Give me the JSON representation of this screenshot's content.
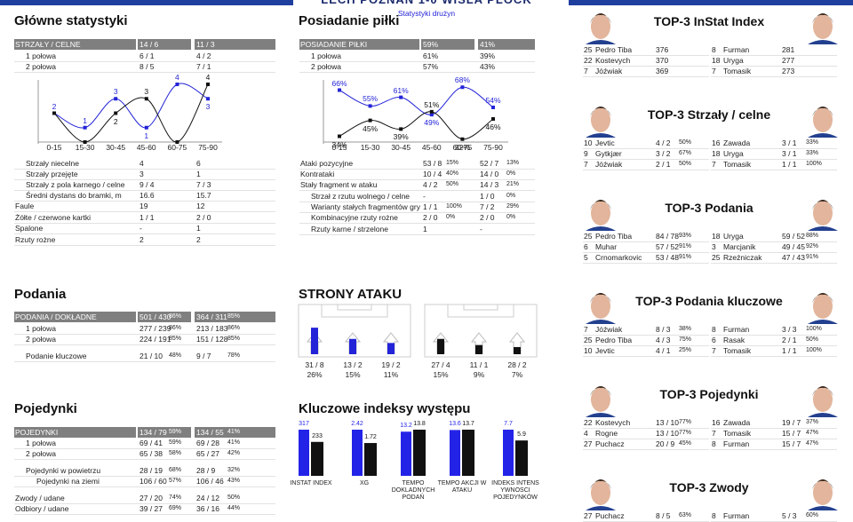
{
  "header": {
    "title": "LECH POZNAN 1-0 WISLA PLOCK",
    "subtitle": "Statystyki drużyn"
  },
  "main_stats": {
    "title": "Główne statystyki",
    "table_header": {
      "label": "STRZAŁY / CELNE",
      "home": "14 / 6",
      "away": "11 / 3"
    },
    "rows": [
      {
        "label": "1 połowa",
        "home": "6 / 1",
        "away": "4 / 2"
      },
      {
        "label": "2 połowa",
        "home": "8 / 5",
        "away": "7 / 1"
      }
    ],
    "chart": {
      "type": "line",
      "categories": [
        "0-15",
        "15-30",
        "30-45",
        "45-60",
        "60-75",
        "75-90"
      ],
      "ylim": [
        0,
        4
      ],
      "series": [
        {
          "color": "#2323d8",
          "values": [
            2,
            1,
            3,
            1,
            4,
            3
          ]
        },
        {
          "color": "#111111",
          "values": [
            2,
            0,
            2,
            3,
            0,
            4
          ]
        }
      ]
    },
    "rows_after": [
      {
        "label": "Strzały niecelne",
        "home": "4",
        "away": "6"
      },
      {
        "label": "Strzały przejęte",
        "home": "3",
        "away": "1"
      },
      {
        "label": "Strzały z pola karnego / celne",
        "home": "9 / 4",
        "away": "7 / 3"
      },
      {
        "label": "Średni dystans do bramki, m",
        "home": "16.6",
        "away": "15.7"
      },
      {
        "label": "Faule",
        "home": "19",
        "away": "12"
      },
      {
        "label": "Żółte / czerwone kartki",
        "home": "1 / 1",
        "away": "2 / 0"
      },
      {
        "label": "Spalone",
        "home": "-",
        "away": "1"
      },
      {
        "label": "Rzuty rożne",
        "home": "2",
        "away": "2"
      }
    ]
  },
  "possession": {
    "title": "Posiadanie piłki",
    "table_header": {
      "label": "POSIADANIE PIŁKI",
      "home": "59%",
      "away": "41%"
    },
    "rows": [
      {
        "label": "1 połowa",
        "home": "61%",
        "away": "39%"
      },
      {
        "label": "2 połowa",
        "home": "57%",
        "away": "43%"
      }
    ],
    "chart": {
      "type": "line",
      "categories": [
        "0-15",
        "15-30",
        "30-45",
        "45-60",
        "60-75",
        "75-90"
      ],
      "ylim": [
        30,
        70
      ],
      "series": [
        {
          "color": "#2323d8",
          "values": [
            66,
            55,
            61,
            49,
            68,
            54
          ],
          "value_labels": [
            "66%",
            "55%",
            "61%",
            "49%",
            "68%",
            "54%"
          ]
        },
        {
          "color": "#111111",
          "values": [
            34,
            45,
            39,
            51,
            32,
            46
          ],
          "value_labels": [
            "34%",
            "45%",
            "39%",
            "51%",
            "32%",
            "46%"
          ]
        }
      ]
    },
    "rows_after": [
      {
        "label": "Ataki pozycyjne",
        "home": "53 / 8",
        "home_pct": "15%",
        "away": "52 / 7",
        "away_pct": "13%"
      },
      {
        "label": "Kontrataki",
        "home": "10 / 4",
        "home_pct": "40%",
        "away": "14 / 0",
        "away_pct": "0%"
      },
      {
        "label": "Stały fragment w ataku",
        "home": "4 / 2",
        "home_pct": "50%",
        "away": "14 / 3",
        "away_pct": "21%"
      },
      {
        "label": "Strzał z rzutu wolnego / celne",
        "home": "-",
        "away": "1 / 0",
        "away_pct": "0%"
      },
      {
        "label": "Warianty stałych fragmentów gry",
        "home": "1 / 1",
        "home_pct": "100%",
        "away": "7 / 2",
        "away_pct": "29%"
      },
      {
        "label": "Kombinacyjne rzuty rożne",
        "home": "2 / 0",
        "home_pct": "0%",
        "away": "2 / 0",
        "away_pct": "0%"
      },
      {
        "label": "Rzuty karne / strzelone",
        "home": "1",
        "away": "-"
      }
    ]
  },
  "passes": {
    "title": "Podania",
    "table_header": {
      "label": "PODANIA / DOKŁADNE",
      "home": "501 / 430",
      "home_pct": "86%",
      "away": "364 / 311",
      "away_pct": "85%"
    },
    "rows": [
      {
        "label": "1 połowa",
        "home": "277 / 239",
        "home_pct": "86%",
        "away": "213 / 183",
        "away_pct": "86%"
      },
      {
        "label": "2 połowa",
        "home": "224 / 191",
        "home_pct": "85%",
        "away": "151 / 128",
        "away_pct": "85%"
      },
      {
        "label": "Podanie kluczowe",
        "home": "21 / 10",
        "home_pct": "48%",
        "away": "9 / 7",
        "away_pct": "78%"
      }
    ]
  },
  "duels": {
    "title": "Pojedynki",
    "table_header": {
      "label": "POJEDYNKI",
      "home": "134 / 79",
      "home_pct": "59%",
      "away": "134 / 55",
      "away_pct": "41%"
    },
    "rows": [
      {
        "label": "1 połowa",
        "home": "69 / 41",
        "home_pct": "59%",
        "away": "69 / 28",
        "away_pct": "41%"
      },
      {
        "label": "2 połowa",
        "home": "65 / 38",
        "home_pct": "58%",
        "away": "65 / 27",
        "away_pct": "42%"
      },
      {
        "label": "Pojedynki w powietrzu",
        "home": "28 / 19",
        "home_pct": "68%",
        "away": "28 / 9",
        "away_pct": "32%"
      },
      {
        "label": "Pojedynki na ziemi",
        "home": "106 / 60",
        "home_pct": "57%",
        "away": "106 / 46",
        "away_pct": "43%"
      },
      {
        "label": "Zwody / udane",
        "home": "27 / 20",
        "home_pct": "74%",
        "away": "24 / 12",
        "away_pct": "50%"
      },
      {
        "label": "Odbiory / udane",
        "home": "39 / 27",
        "home_pct": "69%",
        "away": "36 / 16",
        "away_pct": "44%"
      }
    ]
  },
  "attack_sides": {
    "title": "STRONY ATAKU",
    "home": {
      "color": "#2323d8",
      "counts": [
        "31 / 8",
        "13 / 2",
        "19 / 2"
      ],
      "values": [
        26,
        15,
        11
      ],
      "value_labels": [
        "26%",
        "15%",
        "11%"
      ]
    },
    "away": {
      "color": "#111111",
      "counts": [
        "27 / 4",
        "11 / 1",
        "28 / 2"
      ],
      "values": [
        15,
        9,
        7
      ],
      "value_labels": [
        "15%",
        "9%",
        "7%"
      ]
    }
  },
  "key_indexes": {
    "title": "Kluczowe indeksy występu",
    "type": "bar",
    "categories": [
      "INSTAT INDEX",
      "XG",
      "TEMPO DOKLADNYCH PODAŃ",
      "TEMPO AKCJI W ATAKU",
      "INDEKS INTENS YWNOSCI POJEDYNKÓW"
    ],
    "series": [
      {
        "color": "#2323e8",
        "values": [
          317,
          2.42,
          13.2,
          13.6,
          7.7
        ]
      },
      {
        "color": "#111111",
        "values": [
          233,
          1.72,
          13.8,
          13.7,
          5.9
        ]
      }
    ]
  },
  "top3": [
    {
      "title": "TOP-3 InStat Index",
      "home": [
        {
          "no": "25",
          "name": "Pedro Tiba",
          "value": "376"
        },
        {
          "no": "22",
          "name": "Kostevych",
          "value": "370"
        },
        {
          "no": "7",
          "name": "Jóźwiak",
          "value": "369"
        }
      ],
      "away": [
        {
          "no": "8",
          "name": "Furman",
          "value": "281"
        },
        {
          "no": "18",
          "name": "Uryga",
          "value": "277"
        },
        {
          "no": "7",
          "name": "Tomasik",
          "value": "273"
        }
      ]
    },
    {
      "title": "TOP-3 Strzały / celne",
      "home": [
        {
          "no": "10",
          "name": "Jevtic",
          "value": "4 / 2",
          "pct": "50%"
        },
        {
          "no": "9",
          "name": "Gytkjær",
          "value": "3 / 2",
          "pct": "67%"
        },
        {
          "no": "7",
          "name": "Jóźwiak",
          "value": "2 / 1",
          "pct": "50%"
        }
      ],
      "away": [
        {
          "no": "16",
          "name": "Zawada",
          "value": "3 / 1",
          "pct": "33%"
        },
        {
          "no": "18",
          "name": "Uryga",
          "value": "3 / 1",
          "pct": "33%"
        },
        {
          "no": "7",
          "name": "Tomasik",
          "value": "1 / 1",
          "pct": "100%"
        }
      ]
    },
    {
      "title": "TOP-3 Podania",
      "home": [
        {
          "no": "25",
          "name": "Pedro Tiba",
          "value": "84 / 78",
          "pct": "93%"
        },
        {
          "no": "6",
          "name": "Muhar",
          "value": "57 / 52",
          "pct": "91%"
        },
        {
          "no": "5",
          "name": "Crnomarkovic",
          "value": "53 / 48",
          "pct": "91%"
        }
      ],
      "away": [
        {
          "no": "18",
          "name": "Uryga",
          "value": "59 / 52",
          "pct": "88%"
        },
        {
          "no": "3",
          "name": "Marcjanik",
          "value": "49 / 45",
          "pct": "92%"
        },
        {
          "no": "25",
          "name": "Rzeźniczak",
          "value": "47 / 43",
          "pct": "91%"
        }
      ]
    },
    {
      "title": "TOP-3 Podania kluczowe",
      "home": [
        {
          "no": "7",
          "name": "Jóźwiak",
          "value": "8 / 3",
          "pct": "38%"
        },
        {
          "no": "25",
          "name": "Pedro Tiba",
          "value": "4 / 3",
          "pct": "75%"
        },
        {
          "no": "10",
          "name": "Jevtic",
          "value": "4 / 1",
          "pct": "25%"
        }
      ],
      "away": [
        {
          "no": "8",
          "name": "Furman",
          "value": "3 / 3",
          "pct": "100%"
        },
        {
          "no": "6",
          "name": "Rasak",
          "value": "2 / 1",
          "pct": "50%"
        },
        {
          "no": "7",
          "name": "Tomasik",
          "value": "1 / 1",
          "pct": "100%"
        }
      ]
    },
    {
      "title": "TOP-3 Pojedynki",
      "home": [
        {
          "no": "22",
          "name": "Kostevych",
          "value": "13 / 10",
          "pct": "77%"
        },
        {
          "no": "4",
          "name": "Rogne",
          "value": "13 / 10",
          "pct": "77%"
        },
        {
          "no": "27",
          "name": "Puchacz",
          "value": "20 / 9",
          "pct": "45%"
        }
      ],
      "away": [
        {
          "no": "16",
          "name": "Zawada",
          "value": "19 / 7",
          "pct": "37%"
        },
        {
          "no": "7",
          "name": "Tomasik",
          "value": "15 / 7",
          "pct": "47%"
        },
        {
          "no": "8",
          "name": "Furman",
          "value": "15 / 7",
          "pct": "47%"
        }
      ]
    },
    {
      "title": "TOP-3 Zwody",
      "home": [
        {
          "no": "27",
          "name": "Puchacz",
          "value": "8 / 5",
          "pct": "63%"
        }
      ],
      "away": [
        {
          "no": "8",
          "name": "Furman",
          "value": "5 / 3",
          "pct": "60%"
        }
      ]
    }
  ]
}
